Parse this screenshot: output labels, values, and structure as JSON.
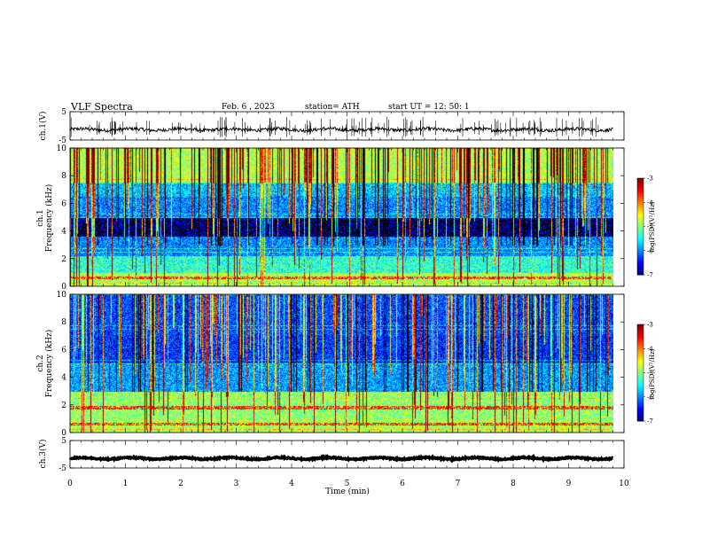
{
  "header": {
    "title": "VLF Spectra",
    "date": "Feb. 6 , 2023",
    "station": "station= ATH",
    "start": "start UT = 12: 50: 1"
  },
  "chart_data": [
    {
      "type": "line",
      "name": "ch1-waveform",
      "ylabel": "ch.1(V)",
      "ylim": [
        -5,
        5
      ],
      "yticks": [
        "5",
        "-5"
      ],
      "xlim": [
        0,
        10
      ],
      "baseline": -1.3,
      "amplitude": 0.6,
      "spike_density": "high",
      "data_extent_min": 9.8
    },
    {
      "type": "heatmap",
      "name": "ch1-spectrogram",
      "ylabel_channel": "ch.1",
      "ylabel": "Frequency (kHz)",
      "ylim": [
        0,
        10
      ],
      "yticks": [
        "0",
        "2",
        "4",
        "6",
        "8",
        "10"
      ],
      "xlim": [
        0,
        10
      ],
      "data_extent_min": 9.8,
      "colorbar": {
        "label": "log(PSD)(V²/Hz)",
        "range": [
          -7,
          -3
        ],
        "ticks": [
          "-3",
          "-4",
          "-5",
          "-6",
          "-7"
        ]
      }
    },
    {
      "type": "heatmap",
      "name": "ch2-spectrogram",
      "ylabel_channel": "ch.2",
      "ylabel": "Frequency (kHz)",
      "ylim": [
        0,
        10
      ],
      "yticks": [
        "0",
        "2",
        "4",
        "6",
        "8",
        "10"
      ],
      "xlim": [
        0,
        10
      ],
      "data_extent_min": 9.8,
      "colorbar": {
        "label": "log(PSD)(V²/Hz)",
        "range": [
          -7,
          -3
        ],
        "ticks": [
          "-3",
          "-4",
          "-5",
          "-6",
          "-7"
        ]
      }
    },
    {
      "type": "line",
      "name": "ch3-waveform",
      "ylabel": "ch.3(V)",
      "ylim": [
        -5,
        5
      ],
      "yticks": [
        "5",
        "-5"
      ],
      "xlim": [
        0,
        10
      ],
      "xlabel": "Time (min)",
      "xticks": [
        "0",
        "1",
        "2",
        "3",
        "4",
        "5",
        "6",
        "7",
        "8",
        "9",
        "10"
      ],
      "baseline": -1.5,
      "amplitude": 0.25,
      "data_extent_min": 9.8
    }
  ]
}
